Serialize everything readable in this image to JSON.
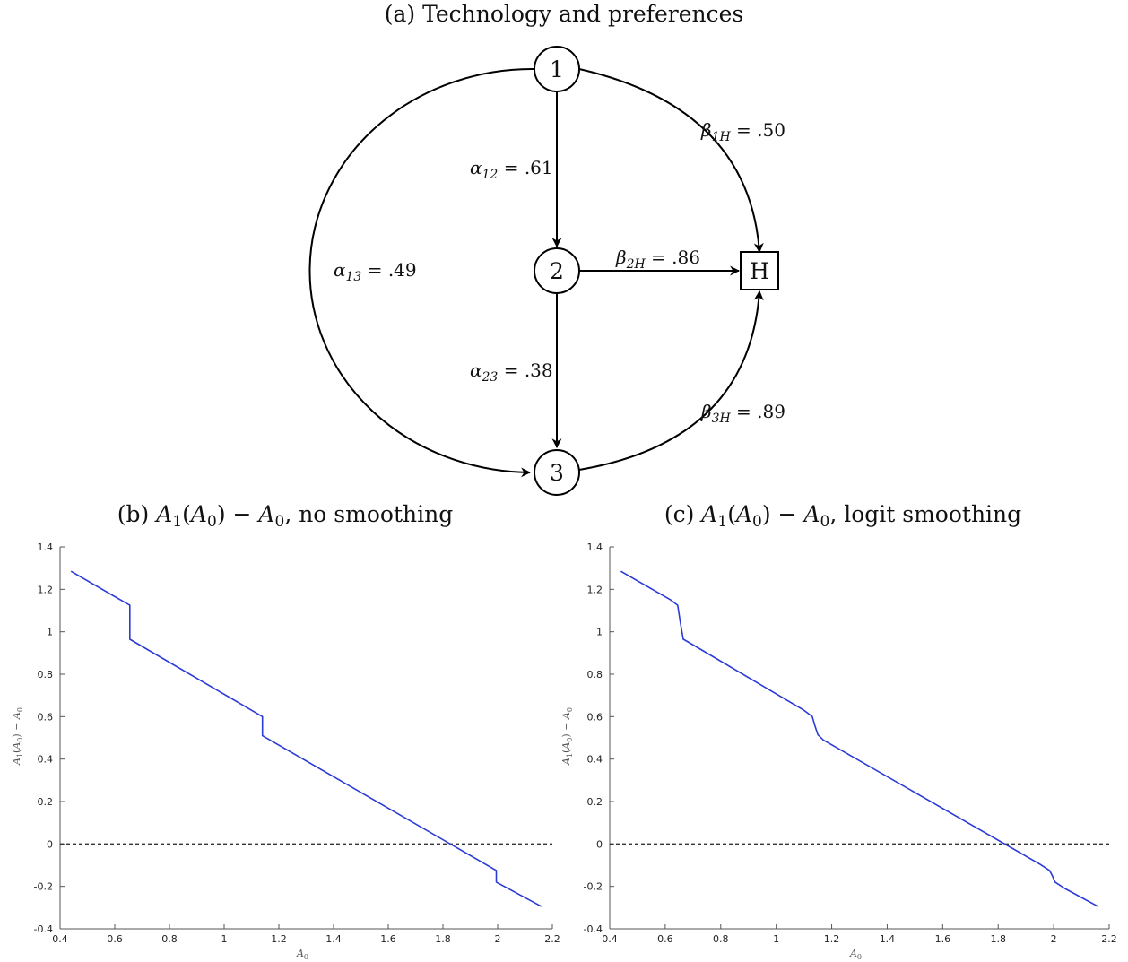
{
  "diagram": {
    "caption_label": "(a) Technology and preferences",
    "nodes": [
      {
        "id": "1",
        "label": "1",
        "shape": "circle"
      },
      {
        "id": "2",
        "label": "2",
        "shape": "circle"
      },
      {
        "id": "3",
        "label": "3",
        "shape": "circle"
      },
      {
        "id": "H",
        "label": "H",
        "shape": "square"
      }
    ],
    "edges": [
      {
        "from": "1",
        "to": "2",
        "sym": "α",
        "sub": "12",
        "value": ".61"
      },
      {
        "from": "1",
        "to": "3",
        "sym": "α",
        "sub": "13",
        "value": ".49"
      },
      {
        "from": "2",
        "to": "3",
        "sym": "α",
        "sub": "23",
        "value": ".38"
      },
      {
        "from": "1",
        "to": "H",
        "sym": "β",
        "sub": "1H",
        "value": ".50"
      },
      {
        "from": "2",
        "to": "H",
        "sym": "β",
        "sub": "2H",
        "value": ".86"
      },
      {
        "from": "3",
        "to": "H",
        "sym": "β",
        "sub": "3H",
        "value": ".89"
      }
    ]
  },
  "chart_data": [
    {
      "type": "line",
      "caption_prefix": "(b)",
      "caption_suffix": ", no smoothing",
      "xlabel": "A0",
      "ylabel": "A1(A0) − A0",
      "xlim": [
        0.4,
        2.2
      ],
      "ylim": [
        -0.4,
        1.4
      ],
      "xticks": [
        "0.4",
        "0.6",
        "0.8",
        "1",
        "1.2",
        "1.4",
        "1.6",
        "1.8",
        "2",
        "2.2"
      ],
      "yticks": [
        "-0.4",
        "-0.2",
        "0",
        "0.2",
        "0.4",
        "0.6",
        "0.8",
        "1",
        "1.2",
        "1.4"
      ],
      "reference_line": {
        "y": 0,
        "style": "dashed"
      },
      "series": [
        {
          "color": "#2b3bd6",
          "x": [
            0.44,
            0.655,
            0.655,
            1.14,
            1.14,
            1.995,
            1.995,
            2.16
          ],
          "y": [
            1.285,
            1.125,
            0.965,
            0.6,
            0.51,
            -0.125,
            -0.18,
            -0.295
          ]
        }
      ]
    },
    {
      "type": "line",
      "caption_prefix": "(c)",
      "caption_suffix": ", logit smoothing",
      "xlabel": "A0",
      "ylabel": "A1(A0) − A0",
      "xlim": [
        0.4,
        2.2
      ],
      "ylim": [
        -0.4,
        1.4
      ],
      "xticks": [
        "0.4",
        "0.6",
        "0.8",
        "1",
        "1.2",
        "1.4",
        "1.6",
        "1.8",
        "2",
        "2.2"
      ],
      "yticks": [
        "-0.4",
        "-0.2",
        "0",
        "0.2",
        "0.4",
        "0.6",
        "0.8",
        "1",
        "1.2",
        "1.4"
      ],
      "reference_line": {
        "y": 0,
        "style": "dashed"
      },
      "series": [
        {
          "color": "#2b3bd6",
          "x": [
            0.44,
            0.62,
            0.645,
            0.655,
            0.665,
            0.685,
            1.1,
            1.13,
            1.14,
            1.15,
            1.17,
            1.95,
            1.985,
            1.995,
            2.005,
            2.04,
            2.16
          ],
          "y": [
            1.285,
            1.15,
            1.125,
            1.04,
            0.965,
            0.95,
            0.63,
            0.6,
            0.555,
            0.515,
            0.49,
            -0.095,
            -0.125,
            -0.15,
            -0.18,
            -0.21,
            -0.295
          ]
        }
      ]
    }
  ]
}
